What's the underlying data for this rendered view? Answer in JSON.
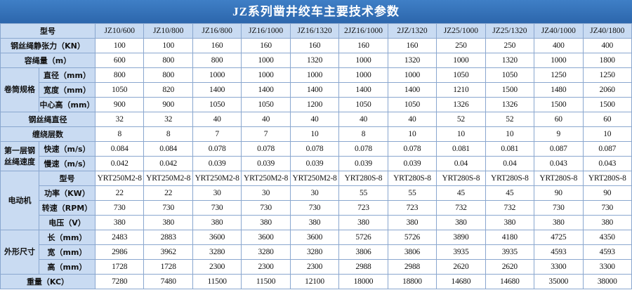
{
  "title": "JZ系列凿井绞车主要技术参数",
  "header": {
    "label": "型号",
    "models": [
      "JZ10/600",
      "JZ10/800",
      "JZ16/800",
      "JZ16/1000",
      "JZ16/1320",
      "2JZ16/1000",
      "2JZ/1320",
      "JZ25/1000",
      "JZ25/1320",
      "JZ40/1000",
      "JZ40/1800"
    ]
  },
  "sections": [
    {
      "label": "钢丝绳静张力（KN）",
      "values": [
        100,
        100,
        160,
        160,
        160,
        160,
        160,
        250,
        250,
        400,
        400
      ]
    },
    {
      "label": "容绳量（m）",
      "values": [
        600,
        800,
        800,
        1000,
        1320,
        1000,
        1320,
        1000,
        1320,
        1000,
        1800
      ]
    },
    {
      "label": "卷筒规格",
      "rows": [
        {
          "label": "直径（mm）",
          "values": [
            800,
            800,
            1000,
            1000,
            1000,
            1000,
            1000,
            1050,
            1050,
            1250,
            1250
          ]
        },
        {
          "label": "宽度（mm）",
          "values": [
            1050,
            820,
            1400,
            1400,
            1400,
            1400,
            1400,
            1210,
            1500,
            1480,
            2060
          ]
        },
        {
          "label": "中心高（mm）",
          "values": [
            900,
            900,
            1050,
            1050,
            1200,
            1050,
            1050,
            1326,
            1326,
            1500,
            1500
          ]
        }
      ]
    },
    {
      "label": "钢丝绳直径",
      "values": [
        32,
        32,
        40,
        40,
        40,
        40,
        40,
        52,
        52,
        60,
        60
      ]
    },
    {
      "label": "缠绕层数",
      "values": [
        8,
        8,
        7,
        7,
        10,
        8,
        10,
        10,
        10,
        9,
        10
      ]
    },
    {
      "label": "第一层钢丝绳速度",
      "rows": [
        {
          "label": "快速（m/s）",
          "values": [
            0.084,
            0.084,
            0.078,
            0.078,
            0.078,
            0.078,
            0.078,
            0.081,
            0.081,
            0.087,
            0.087
          ]
        },
        {
          "label": "慢速（m/s）",
          "values": [
            0.042,
            0.042,
            0.039,
            0.039,
            0.039,
            0.039,
            0.039,
            0.04,
            0.04,
            0.043,
            0.043
          ]
        }
      ]
    },
    {
      "label": "电动机",
      "rows": [
        {
          "label": "型号",
          "values": [
            "YRT250M2-8",
            "YRT250M2-8",
            "YRT250M2-8",
            "YRT250M2-8",
            "YRT250M2-8",
            "YRT280S-8",
            "YRT280S-8",
            "YRT280S-8",
            "YRT280S-8",
            "YRT280S-8",
            "YRT280S-8"
          ]
        },
        {
          "label": "功率（KW）",
          "values": [
            22,
            22,
            30,
            30,
            30,
            55,
            55,
            45,
            45,
            90,
            90
          ]
        },
        {
          "label": "转速（RPM）",
          "values": [
            730,
            730,
            730,
            730,
            730,
            723,
            723,
            732,
            732,
            730,
            730
          ]
        },
        {
          "label": "电压（V）",
          "values": [
            380,
            380,
            380,
            380,
            380,
            380,
            380,
            380,
            380,
            380,
            380
          ]
        }
      ]
    },
    {
      "label": "外形尺寸",
      "rows": [
        {
          "label": "长（mm）",
          "values": [
            2483,
            2883,
            3600,
            3600,
            3600,
            5726,
            5726,
            3890,
            4180,
            4725,
            4350
          ]
        },
        {
          "label": "宽（mm）",
          "values": [
            2986,
            3962,
            3280,
            3280,
            3280,
            3806,
            3806,
            3935,
            3935,
            4593,
            4593
          ]
        },
        {
          "label": "高（mm）",
          "values": [
            1728,
            1728,
            2300,
            2300,
            2300,
            2988,
            2988,
            2620,
            2620,
            3300,
            3300
          ]
        }
      ]
    },
    {
      "label": "重量（KC）",
      "values": [
        7280,
        7480,
        11500,
        11500,
        12100,
        18000,
        18800,
        14680,
        14680,
        35000,
        38000
      ]
    }
  ]
}
